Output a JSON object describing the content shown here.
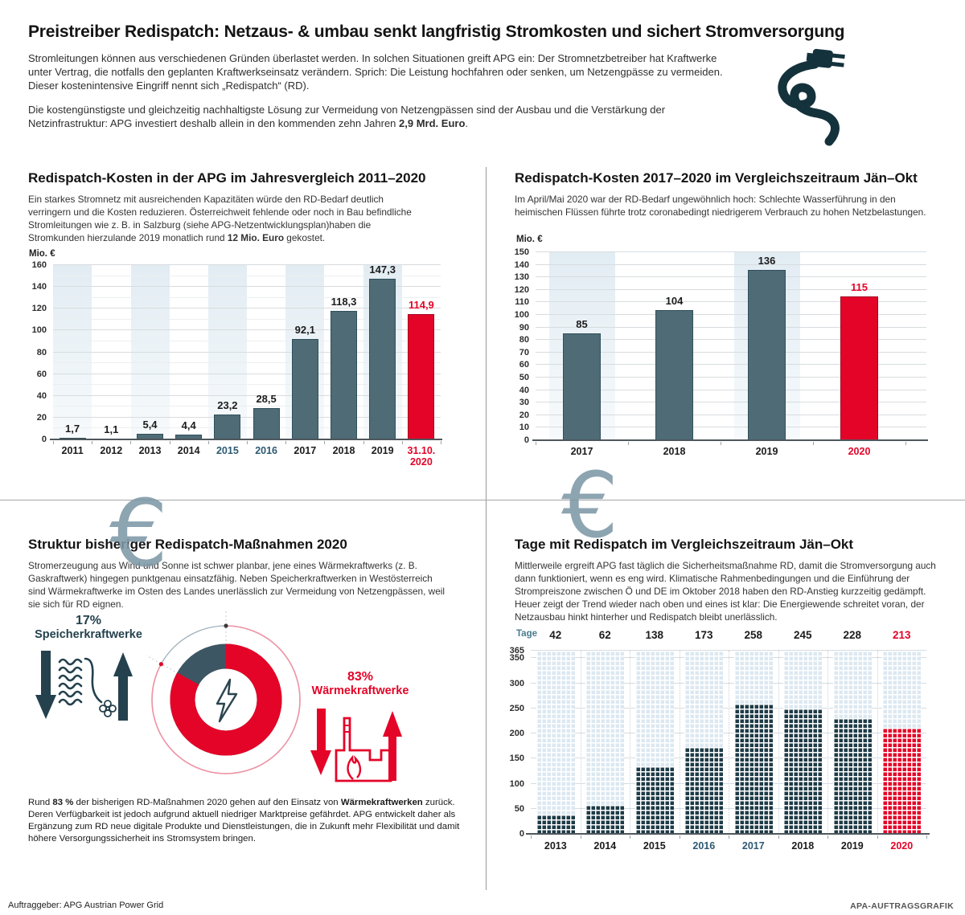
{
  "header": {
    "title": "Preistreiber Redispatch: Netzaus- & umbau senkt langfristig Stromkosten und sichert Stromversorgung",
    "para1": "Stromleitungen können aus verschiedenen Gründen überlastet werden. In solchen Situationen greift APG ein: Der Stromnetzbetreiber hat Kraftwerke unter Vertrag, die notfalls den geplanten Kraftwerkseinsatz verändern. Sprich: Die Leistung hochfahren oder senken, um Netzengpässe zu vermeiden. Dieser kostenintensive Eingriff nennt sich „Redispatch“ (RD).",
    "para2": [
      {
        "t": "Die kostengünstigste und gleichzeitig nachhaltigste Lösung zur Vermeidung von Netzengpässen sind der Ausbau und die Verstärkung der Netzinfrastruktur: APG investiert deshalb allein in den kommenden zehn Jahren ",
        "b": false
      },
      {
        "t": "2,9 Mrd. Euro",
        "b": true
      },
      {
        "t": ".",
        "b": false
      }
    ],
    "plug_icon": "power-plug-icon"
  },
  "colors": {
    "accent_red": "#e40428",
    "bar_slate": "#4e6b76",
    "waffle_navy": "#1e3b47",
    "waffle_light": "#dce8f1",
    "teal_tick": "#2d5a72",
    "icon_dark": "#24414d"
  },
  "chart_data": [
    {
      "id": "costs-by-year",
      "type": "bar",
      "title": "Redispatch-Kosten in der APG im Jahresvergleich 2011–2020",
      "desc": [
        {
          "t": "Ein starkes Stromnetz mit ausreichenden Kapazitäten würde den RD-Bedarf deutlich verringern und die Kosten reduzieren. Österreichweit fehlende oder noch in Bau befindliche Stromleitungen wie z. B. in Salzburg (siehe APG-Netzentwicklungsplan)haben die Stromkunden hierzulande 2019 monatlich rund ",
          "b": false
        },
        {
          "t": "12 Mio. Euro",
          "b": true
        },
        {
          "t": " gekostet.",
          "b": false
        }
      ],
      "unit": "Mio. €",
      "watermark": "€",
      "categories": [
        "2011",
        "2012",
        "2013",
        "2014",
        "2015",
        "2016",
        "2017",
        "2018",
        "2019",
        "31.10.\n2020"
      ],
      "values": [
        1.7,
        1.1,
        5.4,
        4.4,
        23.2,
        28.5,
        92.1,
        118.3,
        147.3,
        114.9
      ],
      "value_labels": [
        "1,7",
        "1,1",
        "5,4",
        "4,4",
        "23,2",
        "28,5",
        "92,1",
        "118,3",
        "147,3",
        "114,9"
      ],
      "ylim": [
        0,
        160
      ],
      "yticks": [
        0,
        20,
        40,
        60,
        80,
        100,
        120,
        140,
        160
      ],
      "grid": true,
      "highlight_index": 9,
      "teal_tick_indices": [
        4,
        5
      ]
    },
    {
      "id": "costs-jan-okt",
      "type": "bar",
      "title": "Redispatch-Kosten 2017–2020 im Vergleichszeitraum Jän–Okt",
      "desc": "Im April/Mai 2020 war der RD-Bedarf ungewöhnlich hoch: Schlechte Wasserführung in den heimischen Flüssen führte trotz coronabedingt niedrigerem Verbrauch zu hohen Netzbelastungen.",
      "unit": "Mio. €",
      "watermark": "€",
      "categories": [
        "2017",
        "2018",
        "2019",
        "2020"
      ],
      "values": [
        85,
        104,
        136,
        115
      ],
      "value_labels": [
        "85",
        "104",
        "136",
        "115"
      ],
      "ylim": [
        0,
        150
      ],
      "yticks": [
        0,
        10,
        20,
        30,
        40,
        50,
        60,
        70,
        80,
        90,
        100,
        110,
        120,
        130,
        140,
        150
      ],
      "grid": true,
      "highlight_index": 3,
      "teal_tick_indices": []
    },
    {
      "id": "structure-2020",
      "type": "pie",
      "title": "Struktur bisheriger Redispatch-Maßnahmen 2020",
      "desc": "Stromerzeugung aus Wind und Sonne ist schwer planbar, jene eines Wärmekraftwerks (z. B. Gaskraftwerk) hingegen punktgenau einsatzfähig. Neben Speicherkraftwerken in Westösterreich sind Wärmekraftwerke im Osten des Landes unerlässlich zur Vermeidung von Netzengpässen, weil sie sich für RD eignen.",
      "slices": [
        {
          "label": "Wärmekraftwerke",
          "pct": 83,
          "pct_label": "83%",
          "color": "#e40428"
        },
        {
          "label": "Speicherkraftwerke",
          "pct": 17,
          "pct_label": "17%",
          "color": "#3d5663"
        }
      ],
      "center_icon": "lightning-bolt",
      "caption": [
        {
          "t": "Rund ",
          "b": false
        },
        {
          "t": "83 %",
          "b": true
        },
        {
          "t": " der bisherigen RD-Maßnahmen 2020 gehen auf den Einsatz von ",
          "b": false
        },
        {
          "t": "Wärmekraftwerken",
          "b": true
        },
        {
          "t": " zurück. Deren Verfügbarkeit ist jedoch aufgrund aktuell niedriger Marktpreise gefährdet. APG entwickelt daher als Ergänzung zum RD neue digitale Produkte und Dienstleistungen, die in Zukunft mehr Flexibilität und damit höhere Versorgungssicherheit ins Stromsystem bringen.",
          "b": false
        }
      ]
    },
    {
      "id": "days-with-redispatch",
      "type": "waffle-bar",
      "title": "Tage mit Redispatch im Vergleichszeitraum Jän–Okt",
      "desc": "Mittlerweile ergreift APG fast täglich die Sicherheitsmaßnahme RD, damit die Stromversorgung auch dann funktioniert, wenn es eng wird. Klimatische Rahmenbedingungen und die Einführung der Strompreiszone zwischen Ö und DE im Oktober 2018 haben den RD-Anstieg kurzzeitig gedämpft. Heuer zeigt der Trend wieder nach oben und eines ist klar: Die Energiewende schreitet voran, der Netzausbau hinkt hinterher und Redispatch bleibt unerlässlich.",
      "unit": "Tage",
      "categories": [
        "2013",
        "2014",
        "2015",
        "2016",
        "2017",
        "2018",
        "2019",
        "2020"
      ],
      "values": [
        42,
        62,
        138,
        173,
        258,
        245,
        228,
        213
      ],
      "value_labels": [
        "42",
        "62",
        "138",
        "173",
        "258",
        "245",
        "228",
        "213"
      ],
      "ymax": 365,
      "yticks": [
        0,
        50,
        100,
        150,
        200,
        250,
        300,
        350,
        365
      ],
      "highlight_index": 7,
      "teal_tick_indices": [
        3,
        4
      ]
    }
  ],
  "footer": {
    "client": "Auftraggeber: APG Austrian Power Grid",
    "credit": "APA-AUFTRAGSGRAFIK"
  }
}
